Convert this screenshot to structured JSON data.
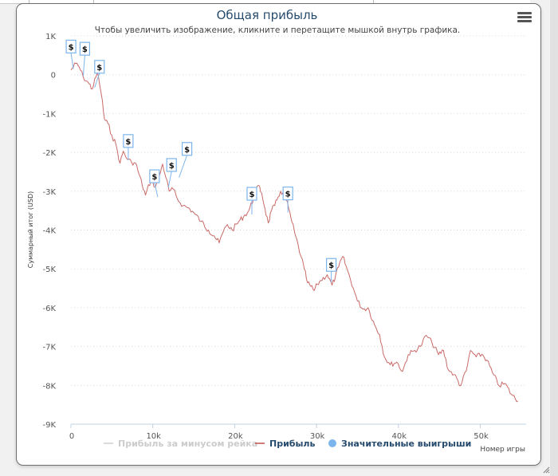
{
  "chart_data": {
    "type": "line",
    "title": "Общая прибыль",
    "subtitle": "Чтобы увеличить изображение, кликните и перетащите мышкой внутрь графика.",
    "xlabel": "Номер игры",
    "ylabel": "Суммарный итог (USD)",
    "xlim": [
      0,
      55500
    ],
    "ylim": [
      -9000,
      1000
    ],
    "x_ticks": [
      0,
      10000,
      20000,
      30000,
      40000,
      50000
    ],
    "x_tick_labels": [
      "0",
      "10k",
      "20k",
      "30k",
      "40k",
      "50k"
    ],
    "y_ticks": [
      1000,
      0,
      -1000,
      -2000,
      -3000,
      -4000,
      -5000,
      -6000,
      -7000,
      -8000,
      -9000
    ],
    "y_tick_labels": [
      "1K",
      "0",
      "-1K",
      "-2K",
      "-3K",
      "-4K",
      "-5K",
      "-6K",
      "-7K",
      "-8K",
      "-9K"
    ],
    "grid": true,
    "legend_position": "bottom",
    "legend": [
      {
        "name": "Прибыль за минусом рейка",
        "symbol": "line",
        "color": "#cccccc",
        "hidden": true
      },
      {
        "name": "Прибыль",
        "symbol": "line",
        "color": "#c0504d",
        "hidden": false
      },
      {
        "name": "Значительные выигрыши",
        "symbol": "circle",
        "color": "#7cb5ec",
        "hidden": false
      }
    ],
    "series": [
      {
        "name": "Прибыль",
        "color": "#c0504d",
        "x": [
          0,
          600,
          1000,
          1500,
          2200,
          2600,
          3200,
          3400,
          3700,
          4100,
          4500,
          5000,
          5500,
          6000,
          6400,
          6900,
          7400,
          7900,
          8300,
          8700,
          9100,
          9800,
          10300,
          10800,
          11200,
          11600,
          12000,
          12500,
          13000,
          13700,
          14500,
          15200,
          15900,
          16800,
          17500,
          18100,
          18600,
          19100,
          19700,
          20500,
          21100,
          21700,
          22300,
          22900,
          23300,
          23700,
          24100,
          24500,
          24900,
          25300,
          25600,
          26100,
          26600,
          27000,
          27400,
          28100,
          28500,
          28900,
          29300,
          29700,
          30100,
          30500,
          31300,
          31900,
          32300,
          32700,
          33200,
          33800,
          34500,
          35000,
          35700,
          36300,
          37100,
          37700,
          38300,
          39000,
          39800,
          40500,
          41200,
          42000,
          42700,
          43400,
          44100,
          44900,
          45500,
          46100,
          46800,
          47600,
          48300,
          48800,
          49500,
          50200,
          50800,
          51500,
          52300,
          53000,
          53800,
          54600
        ],
        "values": [
          120,
          290,
          200,
          -60,
          -230,
          -370,
          40,
          -100,
          -490,
          -1150,
          -1250,
          -1560,
          -1800,
          -2280,
          -1970,
          -2180,
          -2250,
          -2280,
          -2550,
          -2830,
          -3100,
          -2690,
          -2900,
          -2600,
          -2300,
          -2650,
          -3000,
          -2950,
          -3200,
          -3370,
          -3450,
          -3600,
          -3780,
          -4000,
          -4150,
          -4330,
          -4050,
          -3860,
          -4000,
          -3780,
          -3650,
          -3510,
          -3200,
          -2850,
          -3050,
          -3450,
          -3820,
          -3500,
          -3370,
          -3150,
          -3000,
          -3100,
          -3450,
          -3800,
          -4130,
          -4680,
          -5000,
          -5360,
          -5450,
          -5560,
          -5400,
          -5300,
          -5150,
          -5420,
          -5200,
          -4950,
          -4680,
          -5050,
          -5500,
          -5830,
          -6040,
          -6000,
          -6450,
          -6690,
          -7270,
          -7470,
          -7400,
          -7640,
          -7210,
          -7100,
          -7000,
          -6710,
          -6900,
          -7210,
          -7100,
          -7600,
          -7720,
          -8010,
          -7620,
          -7100,
          -7270,
          -7200,
          -7350,
          -7680,
          -8010,
          -7950,
          -8230,
          -8400
        ]
      },
      {
        "name": "Значительные выигрыши",
        "type": "flags",
        "label": "$",
        "x": [
          300,
          1500,
          2900,
          7000,
          10600,
          11900,
          13200,
          22100,
          26500,
          31800
        ],
        "values": [
          150,
          -30,
          -330,
          -2200,
          -3150,
          -2900,
          -2650,
          -3600,
          -3550,
          -5350
        ]
      }
    ]
  },
  "ui": {
    "menu_icon": "hamburger-menu-icon",
    "resize_icon": "resize-grip-icon"
  }
}
